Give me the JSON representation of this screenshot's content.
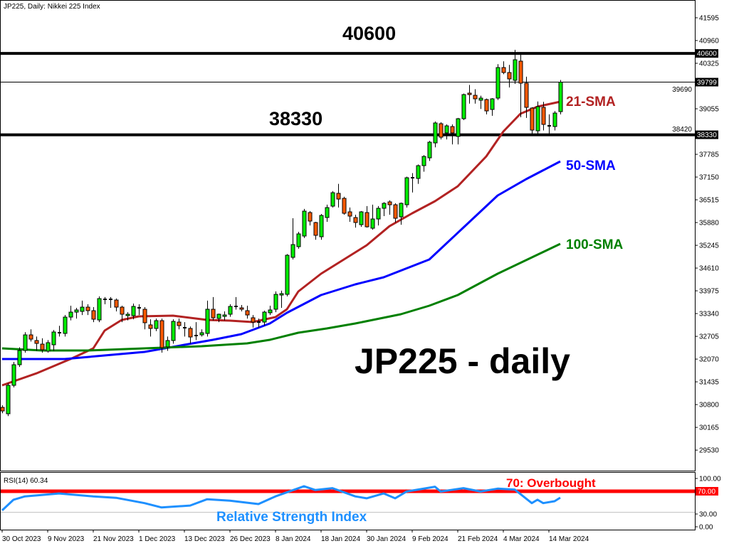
{
  "header": {
    "title": "JP225, Daily:  Nikkei 225 Index"
  },
  "colors": {
    "bull": "#00ee00",
    "bear": "#ff5a00",
    "sma21": "#b22222",
    "sma50": "#0000ff",
    "sma100": "#008000",
    "rsi": "#1e90ff",
    "overbought": "#ff0000",
    "levels": "#000000"
  },
  "chart_data": [
    {
      "type": "candlestick",
      "title": "JP225, Daily:  Nikkei 225 Index",
      "ylim": [
        29100,
        42091
      ],
      "y_ticks": [
        41595,
        40960,
        40325,
        39690,
        39055,
        38420,
        37785,
        37150,
        36515,
        35880,
        35245,
        34610,
        33975,
        33340,
        32705,
        32070,
        31435,
        30800,
        30165,
        29530
      ],
      "x_tick_labels": [
        "30 Oct 2023",
        "9 Nov 2023",
        "21 Nov 2023",
        "1 Dec 2023",
        "13 Dec 2023",
        "26 Dec 2023",
        "8 Jan 2024",
        "18 Jan 2024",
        "30 Jan 2024",
        "9 Feb 2024",
        "21 Feb 2024",
        "4 Mar 2024",
        "14 Mar 2024"
      ],
      "ohlc_fields": [
        "open",
        "high",
        "low",
        "close"
      ],
      "ohlc": [
        [
          30723,
          30780,
          30560,
          30623
        ],
        [
          30544,
          31400,
          30480,
          31338
        ],
        [
          31338,
          31990,
          31280,
          31913
        ],
        [
          31913,
          32400,
          31850,
          32310
        ],
        [
          32310,
          32820,
          32250,
          32746
        ],
        [
          32746,
          32900,
          32560,
          32627
        ],
        [
          32588,
          32700,
          32300,
          32508
        ],
        [
          32488,
          32650,
          32250,
          32330
        ],
        [
          32290,
          32600,
          32250,
          32528
        ],
        [
          32469,
          32880,
          32300,
          32826
        ],
        [
          32806,
          33000,
          32700,
          32806
        ],
        [
          32786,
          33300,
          32700,
          33242
        ],
        [
          33242,
          33560,
          33150,
          33381
        ],
        [
          33381,
          33500,
          33200,
          33441
        ],
        [
          33401,
          33700,
          33300,
          33520
        ],
        [
          33520,
          33600,
          33300,
          33421
        ],
        [
          33421,
          33520,
          33100,
          33183
        ],
        [
          33163,
          33820,
          33100,
          33758
        ],
        [
          33738,
          33800,
          33600,
          33738
        ],
        [
          33738,
          33800,
          33500,
          33738
        ],
        [
          33718,
          33760,
          33400,
          33520
        ],
        [
          33520,
          33560,
          33100,
          33322
        ],
        [
          33282,
          33380,
          33150,
          33322
        ],
        [
          33282,
          33620,
          33180,
          33540
        ],
        [
          33500,
          33600,
          33300,
          33500
        ],
        [
          33461,
          33520,
          32900,
          33084
        ],
        [
          33024,
          33180,
          32700,
          32925
        ],
        [
          32925,
          33200,
          32850,
          33143
        ],
        [
          33143,
          33200,
          32250,
          32389
        ],
        [
          32409,
          32700,
          32300,
          32588
        ],
        [
          32588,
          33180,
          32500,
          33123
        ],
        [
          33103,
          33200,
          32900,
          33004
        ],
        [
          32945,
          33100,
          32700,
          32945
        ],
        [
          32925,
          32980,
          32500,
          32687
        ],
        [
          32727,
          33100,
          32600,
          32727
        ],
        [
          32746,
          32900,
          32700,
          32806
        ],
        [
          32786,
          33700,
          32700,
          33461
        ],
        [
          33461,
          33800,
          33150,
          33223
        ],
        [
          33203,
          33340,
          33100,
          33322
        ],
        [
          33262,
          33400,
          33150,
          33302
        ],
        [
          33322,
          33600,
          33250,
          33540
        ],
        [
          33540,
          33800,
          33450,
          33540
        ],
        [
          33500,
          33580,
          33400,
          33461
        ],
        [
          33421,
          33560,
          33200,
          33302
        ],
        [
          33223,
          33300,
          32950,
          33103
        ],
        [
          33103,
          33200,
          32950,
          33103
        ],
        [
          33103,
          33420,
          33000,
          33381
        ],
        [
          33362,
          33560,
          33300,
          33441
        ],
        [
          33461,
          33960,
          33380,
          33877
        ],
        [
          33857,
          33980,
          33500,
          33897
        ],
        [
          33877,
          35000,
          33820,
          34968
        ],
        [
          34909,
          36000,
          34850,
          35266
        ],
        [
          35207,
          35620,
          35150,
          35564
        ],
        [
          35504,
          36260,
          35450,
          36199
        ],
        [
          36159,
          36200,
          35800,
          35921
        ],
        [
          35881,
          35900,
          35400,
          35524
        ],
        [
          35484,
          36120,
          35400,
          36079
        ],
        [
          36020,
          36380,
          35900,
          36298
        ],
        [
          36338,
          36760,
          36300,
          36714
        ],
        [
          36695,
          36960,
          36300,
          36536
        ],
        [
          36556,
          36600,
          36100,
          36139
        ],
        [
          36179,
          36300,
          35900,
          36060
        ],
        [
          36020,
          36100,
          35740,
          35881
        ],
        [
          35821,
          36200,
          35760,
          36179
        ],
        [
          36159,
          36340,
          35740,
          35762
        ],
        [
          35722,
          36380,
          35680,
          35980
        ],
        [
          35980,
          36340,
          35800,
          36278
        ],
        [
          36278,
          36450,
          36060,
          36417
        ],
        [
          36457,
          36500,
          36100,
          36377
        ],
        [
          36377,
          36420,
          35880,
          36000
        ],
        [
          36040,
          36440,
          35820,
          36417
        ],
        [
          36377,
          37160,
          36300,
          37131
        ],
        [
          37131,
          37260,
          36720,
          37131
        ],
        [
          37111,
          37500,
          36960,
          37468
        ],
        [
          37468,
          37760,
          37300,
          37726
        ],
        [
          37686,
          38160,
          37600,
          38123
        ],
        [
          38103,
          38700,
          37980,
          38659
        ],
        [
          38639,
          38680,
          38200,
          38262
        ],
        [
          38381,
          38620,
          38200,
          38579
        ],
        [
          38559,
          38620,
          38060,
          38381
        ],
        [
          38282,
          38800,
          38060,
          38778
        ],
        [
          38778,
          39480,
          38740,
          39452
        ],
        [
          39492,
          39720,
          39200,
          39452
        ],
        [
          39432,
          39600,
          39200,
          39333
        ],
        [
          39294,
          39420,
          39050,
          39353
        ],
        [
          39313,
          39340,
          38900,
          38996
        ],
        [
          39036,
          39353,
          38860,
          39333
        ],
        [
          39353,
          40300,
          39300,
          40206
        ],
        [
          40206,
          40380,
          40020,
          40067
        ],
        [
          40067,
          40280,
          39650,
          39889
        ],
        [
          39849,
          40700,
          39750,
          40424
        ],
        [
          40385,
          40600,
          38820,
          39770
        ],
        [
          39770,
          39950,
          38800,
          39095
        ],
        [
          39075,
          39100,
          38330,
          38460
        ],
        [
          38440,
          39260,
          38350,
          39115
        ],
        [
          39095,
          39250,
          38450,
          38619
        ],
        [
          38579,
          38900,
          38330,
          38579
        ],
        [
          38559,
          38990,
          38450,
          38936
        ],
        [
          38976,
          39860,
          38900,
          39799
        ]
      ],
      "series": [
        {
          "name": "21-SMA",
          "color": "#b22222",
          "points": [
            [
              0,
              31338
            ],
            [
              6,
              31671
            ],
            [
              12,
              32071
            ],
            [
              16,
              32369
            ],
            [
              18,
              32865
            ],
            [
              21,
              33163
            ],
            [
              24,
              33262
            ],
            [
              30,
              33282
            ],
            [
              36,
              33163
            ],
            [
              40,
              33143
            ],
            [
              44,
              33103
            ],
            [
              48,
              33242
            ],
            [
              50,
              33461
            ],
            [
              52,
              33957
            ],
            [
              56,
              34453
            ],
            [
              60,
              34850
            ],
            [
              64,
              35247
            ],
            [
              68,
              35778
            ],
            [
              72,
              36139
            ],
            [
              76,
              36476
            ],
            [
              80,
              36893
            ],
            [
              85,
              37726
            ],
            [
              88,
              38421
            ],
            [
              91,
              38917
            ],
            [
              94,
              39115
            ],
            [
              98,
              39254
            ]
          ]
        },
        {
          "name": "50-SMA",
          "color": "#0000ff",
          "points": [
            [
              0,
              32071
            ],
            [
              11,
              32071
            ],
            [
              25,
              32270
            ],
            [
              32,
              32469
            ],
            [
              37,
              32608
            ],
            [
              42,
              32766
            ],
            [
              47,
              33064
            ],
            [
              50,
              33362
            ],
            [
              56,
              33857
            ],
            [
              62,
              34155
            ],
            [
              67,
              34353
            ],
            [
              75,
              34849
            ],
            [
              81,
              35742
            ],
            [
              87,
              36635
            ],
            [
              92,
              37091
            ],
            [
              98,
              37587
            ]
          ]
        },
        {
          "name": "100-SMA",
          "color": "#008000",
          "points": [
            [
              0,
              32369
            ],
            [
              7,
              32310
            ],
            [
              15,
              32310
            ],
            [
              25,
              32369
            ],
            [
              35,
              32429
            ],
            [
              43,
              32508
            ],
            [
              47,
              32608
            ],
            [
              52,
              32806
            ],
            [
              57,
              32925
            ],
            [
              62,
              33064
            ],
            [
              70,
              33322
            ],
            [
              75,
              33560
            ],
            [
              80,
              33857
            ],
            [
              87,
              34453
            ],
            [
              98,
              35286
            ]
          ]
        }
      ],
      "levels": [
        {
          "value": 40600,
          "label": "40600",
          "style": "thick"
        },
        {
          "value": 38330,
          "label": "38330",
          "style": "thick"
        },
        {
          "value": 39799,
          "label": "39799",
          "style": "thin"
        }
      ],
      "annotations": {
        "level_high": "40600",
        "level_low": "38330",
        "sma21": "21-SMA",
        "sma50": "50-SMA",
        "sma100": "100-SMA",
        "headline": "JP225 - daily"
      }
    },
    {
      "type": "line",
      "title": "RSI(14) 60.34",
      "ylim": [
        0,
        100
      ],
      "y_ticks": [
        "100.00",
        "70.00",
        "30.00",
        "0.00"
      ],
      "levels": [
        {
          "value": 70,
          "label": "70.00"
        },
        {
          "value": 30
        }
      ],
      "series": [
        {
          "name": "RSI(14)",
          "points": [
            [
              0,
              34
            ],
            [
              2,
              56
            ],
            [
              4,
              63
            ],
            [
              10,
              69
            ],
            [
              16,
              63
            ],
            [
              20,
              60
            ],
            [
              25,
              49
            ],
            [
              28,
              40
            ],
            [
              33,
              44
            ],
            [
              36,
              57
            ],
            [
              40,
              54
            ],
            [
              45,
              47
            ],
            [
              48,
              63
            ],
            [
              53,
              84
            ],
            [
              55,
              76
            ],
            [
              58,
              80
            ],
            [
              62,
              63
            ],
            [
              64,
              59
            ],
            [
              67,
              69
            ],
            [
              69,
              59
            ],
            [
              71,
              73
            ],
            [
              76,
              83
            ],
            [
              77,
              73
            ],
            [
              81,
              80
            ],
            [
              84,
              73
            ],
            [
              87,
              79
            ],
            [
              90,
              77
            ],
            [
              93,
              49
            ],
            [
              94,
              56
            ],
            [
              95,
              49
            ],
            [
              97,
              53
            ],
            [
              98,
              60.34
            ]
          ]
        }
      ],
      "annotations": {
        "overbought": "70: Overbought",
        "name": "Relative Strength Index"
      }
    }
  ]
}
